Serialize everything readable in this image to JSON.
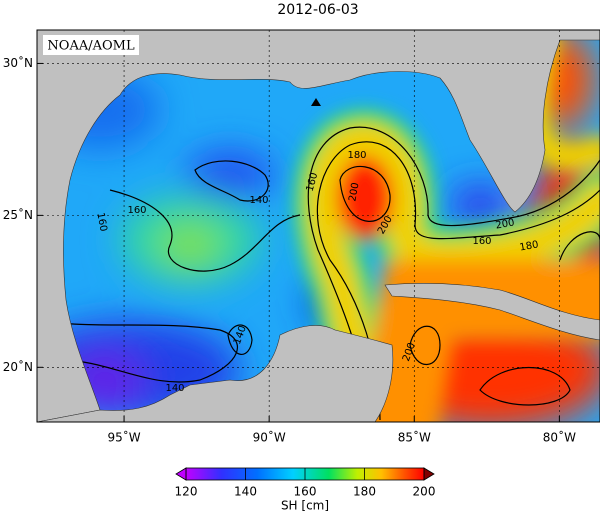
{
  "map": {
    "title": "2012-06-03",
    "credit": "NOAA/AOML",
    "extent": {
      "lon": [
        -98,
        -78.6
      ],
      "lat": [
        18.2,
        31.1
      ]
    },
    "lon_ticks": [
      {
        "value": -95,
        "label": "95˚W"
      },
      {
        "value": -90,
        "label": "90˚W"
      },
      {
        "value": -85,
        "label": "85˚W"
      },
      {
        "value": -80,
        "label": "80˚W"
      }
    ],
    "lat_ticks": [
      {
        "value": 30,
        "label": "30˚N"
      },
      {
        "value": 25,
        "label": "25˚N"
      },
      {
        "value": 20,
        "label": "20˚N"
      }
    ],
    "contour_labels": [
      160,
      160,
      140,
      140,
      140,
      180,
      160,
      200,
      200,
      160,
      180,
      200,
      200
    ],
    "colorbar": {
      "label": "SH [cm]",
      "range": [
        120,
        200
      ],
      "ticks": [
        120,
        140,
        160,
        180,
        200
      ]
    }
  }
}
